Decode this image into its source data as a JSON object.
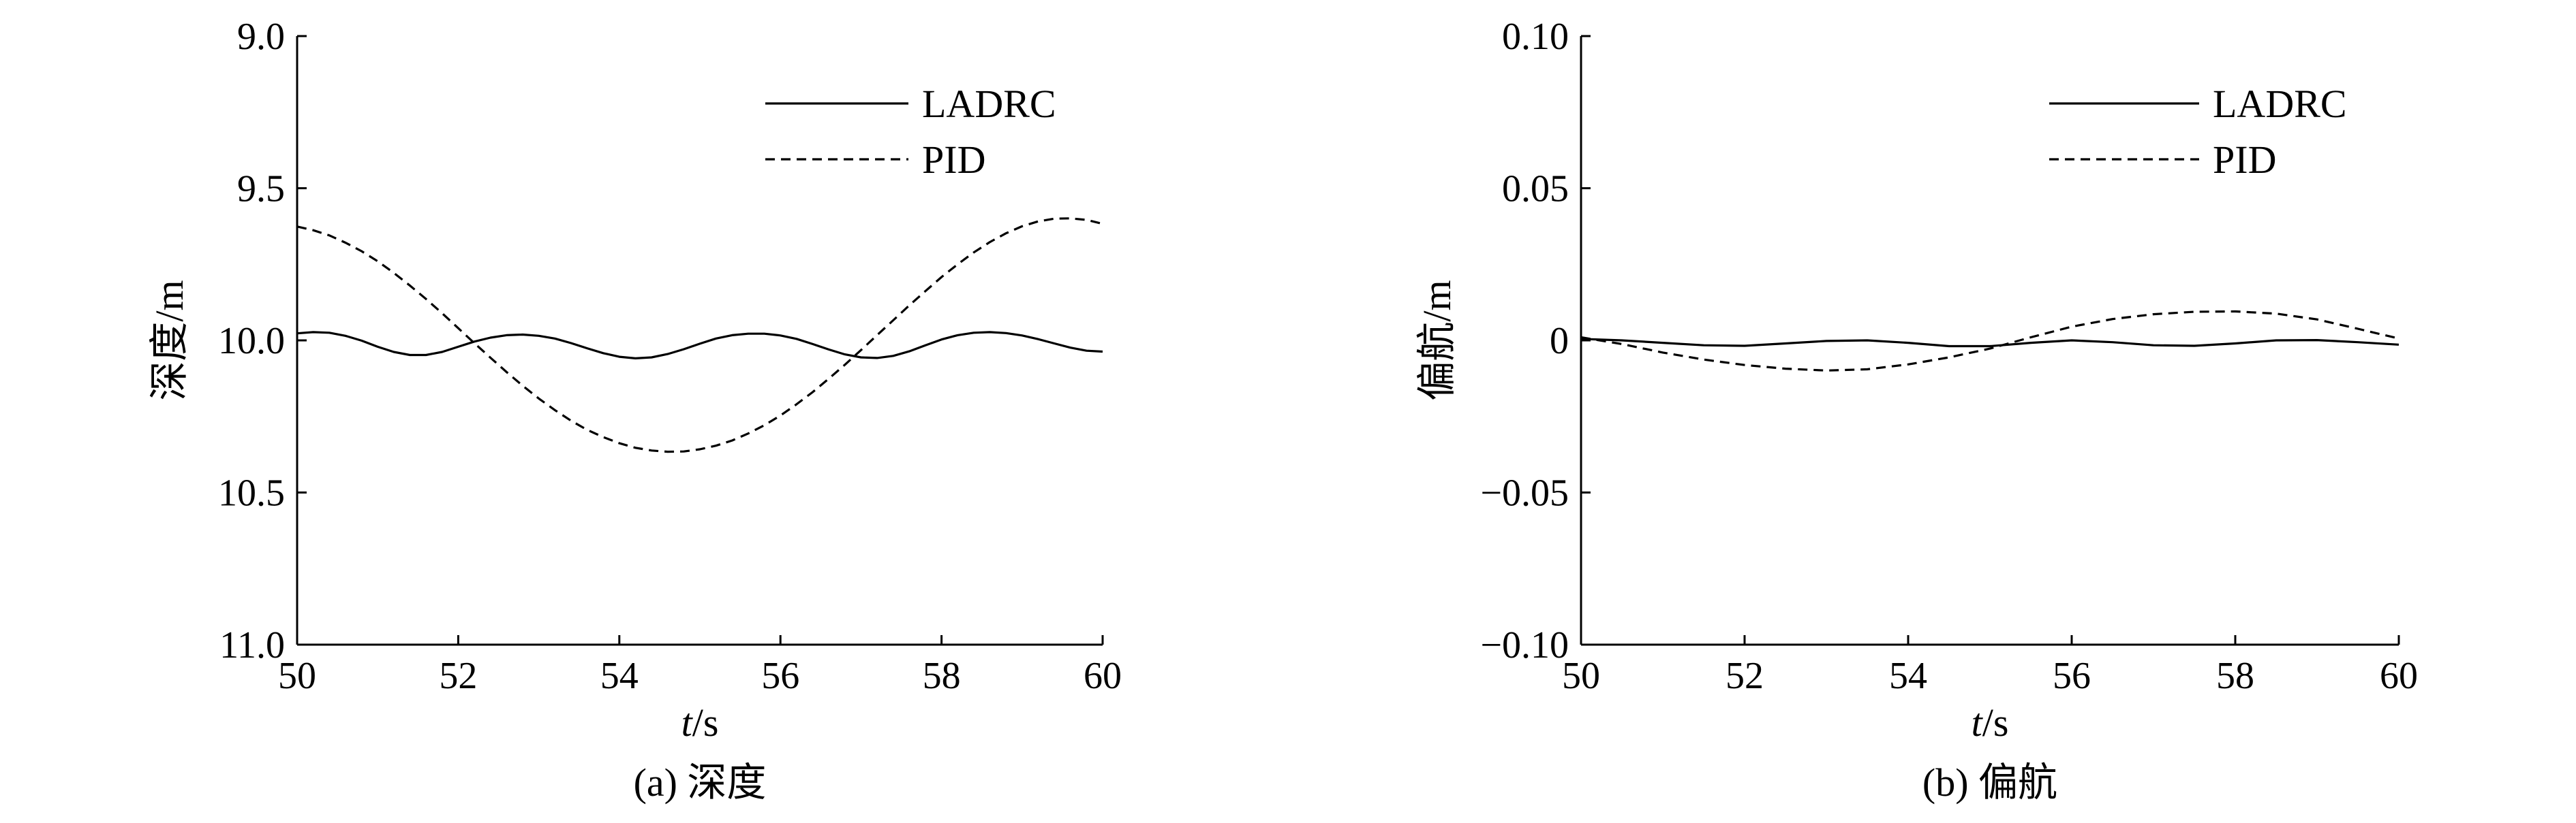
{
  "chart_data": [
    {
      "type": "line",
      "title": "",
      "caption": "(a) 深度",
      "xlabel_italic": "t",
      "xlabel_rest": "/s",
      "ylabel": "深度/m",
      "xlim": [
        50,
        60
      ],
      "ylim": [
        9.0,
        11.0
      ],
      "y_inverted": true,
      "xticks": [
        50,
        52,
        54,
        56,
        58,
        60
      ],
      "xtick_labels": [
        "50",
        "52",
        "54",
        "56",
        "58",
        "60"
      ],
      "yticks": [
        9.0,
        9.5,
        10.0,
        10.5,
        11.0
      ],
      "ytick_labels": [
        "9.0",
        "9.5",
        "10.0",
        "10.5",
        "11.0"
      ],
      "grid": false,
      "legend_position": "top-right",
      "series": [
        {
          "name": "LADRC",
          "style": "solid",
          "x": [
            50,
            50.2,
            50.4,
            50.6,
            50.8,
            51,
            51.2,
            51.4,
            51.6,
            51.8,
            52,
            52.2,
            52.4,
            52.6,
            52.8,
            53,
            53.2,
            53.4,
            53.6,
            53.8,
            54,
            54.2,
            54.4,
            54.6,
            54.8,
            55,
            55.2,
            55.4,
            55.6,
            55.8,
            56,
            56.2,
            56.4,
            56.6,
            56.8,
            57,
            57.2,
            57.4,
            57.6,
            57.8,
            58,
            58.2,
            58.4,
            58.6,
            58.8,
            59,
            59.2,
            59.4,
            59.6,
            59.8,
            60
          ],
          "y": [
            9.977,
            9.973,
            9.975,
            9.985,
            10.001,
            10.021,
            10.038,
            10.048,
            10.048,
            10.038,
            10.021,
            10.004,
            9.991,
            9.983,
            9.981,
            9.985,
            9.994,
            10.009,
            10.026,
            10.042,
            10.054,
            10.059,
            10.056,
            10.045,
            10.029,
            10.011,
            9.994,
            9.983,
            9.978,
            9.978,
            9.984,
            9.995,
            10.012,
            10.03,
            10.046,
            10.056,
            10.058,
            10.051,
            10.036,
            10.016,
            9.997,
            9.983,
            9.975,
            9.973,
            9.976,
            9.984,
            9.996,
            10.01,
            10.024,
            10.034,
            10.037
          ]
        },
        {
          "name": "PID",
          "style": "dashed",
          "x": [
            50,
            50.2,
            50.4,
            50.6,
            50.8,
            51,
            51.2,
            51.4,
            51.6,
            51.8,
            52,
            52.2,
            52.4,
            52.6,
            52.8,
            53,
            53.2,
            53.4,
            53.6,
            53.8,
            54,
            54.2,
            54.4,
            54.6,
            54.8,
            55,
            55.2,
            55.4,
            55.6,
            55.8,
            56,
            56.2,
            56.4,
            56.6,
            56.8,
            57,
            57.2,
            57.4,
            57.6,
            57.8,
            58,
            58.2,
            58.4,
            58.6,
            58.8,
            59,
            59.2,
            59.4,
            59.6,
            59.8,
            60
          ],
          "y": [
            9.626,
            9.638,
            9.655,
            9.679,
            9.707,
            9.74,
            9.778,
            9.82,
            9.864,
            9.911,
            9.96,
            10.009,
            10.057,
            10.104,
            10.149,
            10.191,
            10.229,
            10.264,
            10.294,
            10.318,
            10.338,
            10.353,
            10.362,
            10.366,
            10.365,
            10.358,
            10.346,
            10.329,
            10.306,
            10.279,
            10.247,
            10.21,
            10.17,
            10.126,
            10.08,
            10.032,
            9.983,
            9.934,
            9.885,
            9.838,
            9.792,
            9.75,
            9.711,
            9.677,
            9.648,
            9.625,
            9.609,
            9.6,
            9.599,
            9.604,
            9.617
          ]
        }
      ]
    },
    {
      "type": "line",
      "title": "",
      "caption": "(b) 偏航",
      "xlabel_italic": "t",
      "xlabel_rest": "/s",
      "ylabel": "偏航/m",
      "xlim": [
        50,
        60
      ],
      "ylim": [
        -0.1,
        0.1
      ],
      "y_inverted": false,
      "xticks": [
        50,
        52,
        54,
        56,
        58,
        60
      ],
      "xtick_labels": [
        "50",
        "52",
        "54",
        "56",
        "58",
        "60"
      ],
      "yticks": [
        0.1,
        0.05,
        0,
        -0.05,
        -0.1
      ],
      "ytick_labels": [
        "0.10",
        "0.05",
        "0",
        "−0.05",
        "−0.10"
      ],
      "grid": false,
      "legend_position": "top-right",
      "series": [
        {
          "name": "LADRC",
          "style": "solid",
          "x": [
            50,
            50.5,
            51,
            51.5,
            52,
            52.5,
            53,
            53.5,
            54,
            54.5,
            55,
            55.5,
            56,
            56.5,
            57,
            57.5,
            58,
            58.5,
            59,
            59.5,
            60
          ],
          "y": [
            0.0005,
            0.0,
            -0.0008,
            -0.0016,
            -0.0018,
            -0.001,
            -0.0002,
            0.0,
            -0.0008,
            -0.0019,
            -0.0019,
            -0.0008,
            0.0,
            -0.0006,
            -0.0016,
            -0.0018,
            -0.001,
            0.0,
            0.0001,
            -0.0006,
            -0.0014
          ]
        },
        {
          "name": "PID",
          "style": "dashed",
          "x": [
            50,
            50.5,
            51,
            51.5,
            52,
            52.5,
            53,
            53.5,
            54,
            54.5,
            55,
            55.5,
            56,
            56.5,
            57,
            57.5,
            58,
            58.5,
            59,
            59.5,
            60
          ],
          "y": [
            0.001,
            -0.0012,
            -0.004,
            -0.0063,
            -0.0081,
            -0.0093,
            -0.0099,
            -0.0095,
            -0.0079,
            -0.0056,
            -0.0027,
            0.001,
            0.0045,
            0.007,
            0.0086,
            0.0094,
            0.0095,
            0.0088,
            0.0069,
            0.0038,
            0.0006
          ]
        }
      ]
    }
  ]
}
